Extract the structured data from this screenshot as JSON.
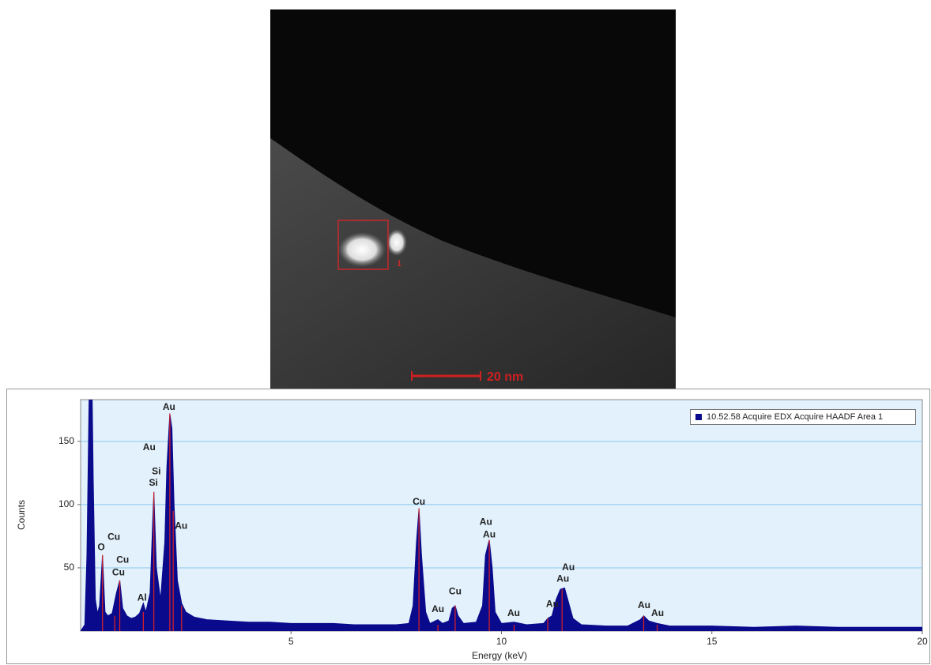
{
  "image": {
    "scale_bar": "20 nm",
    "area_label": "1"
  },
  "chart_data": {
    "type": "area",
    "xlabel": "Energy (keV)",
    "ylabel": "Counts",
    "xlim": [
      0,
      20
    ],
    "ylim": [
      0,
      183
    ],
    "xticks": [
      5,
      10,
      15,
      20
    ],
    "yticks": [
      50,
      100,
      150
    ],
    "grid": true,
    "legend": "upper right",
    "x": [
      0,
      0.1,
      0.15,
      0.2,
      0.25,
      0.3,
      0.35,
      0.4,
      0.45,
      0.52,
      0.58,
      0.65,
      0.75,
      0.85,
      0.93,
      1.0,
      1.1,
      1.2,
      1.3,
      1.4,
      1.49,
      1.55,
      1.65,
      1.74,
      1.8,
      1.9,
      2.0,
      2.05,
      2.12,
      2.17,
      2.22,
      2.3,
      2.4,
      2.5,
      2.7,
      3.0,
      3.5,
      4,
      4.5,
      5,
      5.5,
      6,
      6.5,
      7,
      7.5,
      7.8,
      7.9,
      7.98,
      8.04,
      8.1,
      8.2,
      8.3,
      8.49,
      8.6,
      8.75,
      8.83,
      8.9,
      8.97,
      9.1,
      9.4,
      9.55,
      9.62,
      9.71,
      9.78,
      9.85,
      10.0,
      10.3,
      10.6,
      11.0,
      11.1,
      11.2,
      11.3,
      11.4,
      11.5,
      11.6,
      11.7,
      11.9,
      12.5,
      13.0,
      13.3,
      13.38,
      13.5,
      13.7,
      14,
      15,
      16,
      17,
      18,
      19,
      20
    ],
    "series": [
      {
        "name": "10.52.58 Acquire EDX Acquire HAADF Area 1",
        "color": "#0a0a8c",
        "values": [
          0,
          5,
          60,
          180,
          250,
          120,
          25,
          14,
          20,
          60,
          15,
          12,
          14,
          30,
          40,
          18,
          12,
          10,
          11,
          14,
          22,
          15,
          30,
          110,
          50,
          25,
          70,
          130,
          172,
          160,
          100,
          40,
          22,
          15,
          11,
          9,
          8,
          7,
          7,
          6,
          6,
          6,
          5,
          5,
          5,
          6,
          20,
          70,
          97,
          60,
          15,
          6,
          9,
          6,
          8,
          18,
          20,
          12,
          6,
          7,
          20,
          60,
          72,
          50,
          15,
          6,
          7,
          5,
          6,
          10,
          12,
          25,
          33,
          34,
          22,
          10,
          5,
          4,
          4,
          9,
          12,
          8,
          6,
          4,
          4,
          3,
          4,
          3,
          3,
          3
        ]
      }
    ],
    "line_markers": [
      {
        "energy": 0.52,
        "counts": 60
      },
      {
        "energy": 0.81,
        "counts": 12
      },
      {
        "energy": 0.93,
        "counts": 40
      },
      {
        "energy": 1.49,
        "counts": 15
      },
      {
        "energy": 1.74,
        "counts": 110
      },
      {
        "energy": 2.12,
        "counts": 172
      },
      {
        "energy": 2.2,
        "counts": 95
      },
      {
        "energy": 2.4,
        "counts": 20
      },
      {
        "energy": 8.04,
        "counts": 97
      },
      {
        "energy": 8.49,
        "counts": 5
      },
      {
        "energy": 8.9,
        "counts": 20
      },
      {
        "energy": 9.71,
        "counts": 72
      },
      {
        "energy": 10.3,
        "counts": 5
      },
      {
        "energy": 11.1,
        "counts": 10
      },
      {
        "energy": 11.44,
        "counts": 33
      },
      {
        "energy": 13.38,
        "counts": 12
      },
      {
        "energy": 13.7,
        "counts": 5
      }
    ],
    "annotations": [
      {
        "text": "O",
        "energy": 0.49,
        "counts": 66
      },
      {
        "text": "Cu",
        "energy": 0.79,
        "counts": 74
      },
      {
        "text": "Cu",
        "energy": 1.0,
        "counts": 56
      },
      {
        "text": "Cu",
        "energy": 0.9,
        "counts": 46
      },
      {
        "text": "Al",
        "energy": 1.46,
        "counts": 26
      },
      {
        "text": "Si",
        "energy": 1.8,
        "counts": 126
      },
      {
        "text": "Si",
        "energy": 1.73,
        "counts": 117
      },
      {
        "text": "Au",
        "energy": 1.63,
        "counts": 145
      },
      {
        "text": "Au",
        "energy": 2.1,
        "counts": 177
      },
      {
        "text": "Au",
        "energy": 2.39,
        "counts": 83
      },
      {
        "text": "Cu",
        "energy": 8.04,
        "counts": 102
      },
      {
        "text": "Au",
        "energy": 8.49,
        "counts": 17
      },
      {
        "text": "Cu",
        "energy": 8.9,
        "counts": 31
      },
      {
        "text": "Au",
        "energy": 9.63,
        "counts": 86
      },
      {
        "text": "Au",
        "energy": 9.71,
        "counts": 76
      },
      {
        "text": "Au",
        "energy": 10.29,
        "counts": 14
      },
      {
        "text": "Au",
        "energy": 11.21,
        "counts": 21
      },
      {
        "text": "Au",
        "energy": 11.46,
        "counts": 41
      },
      {
        "text": "Au",
        "energy": 11.59,
        "counts": 50
      },
      {
        "text": "Au",
        "energy": 13.39,
        "counts": 20
      },
      {
        "text": "Au",
        "energy": 13.71,
        "counts": 14
      }
    ]
  }
}
